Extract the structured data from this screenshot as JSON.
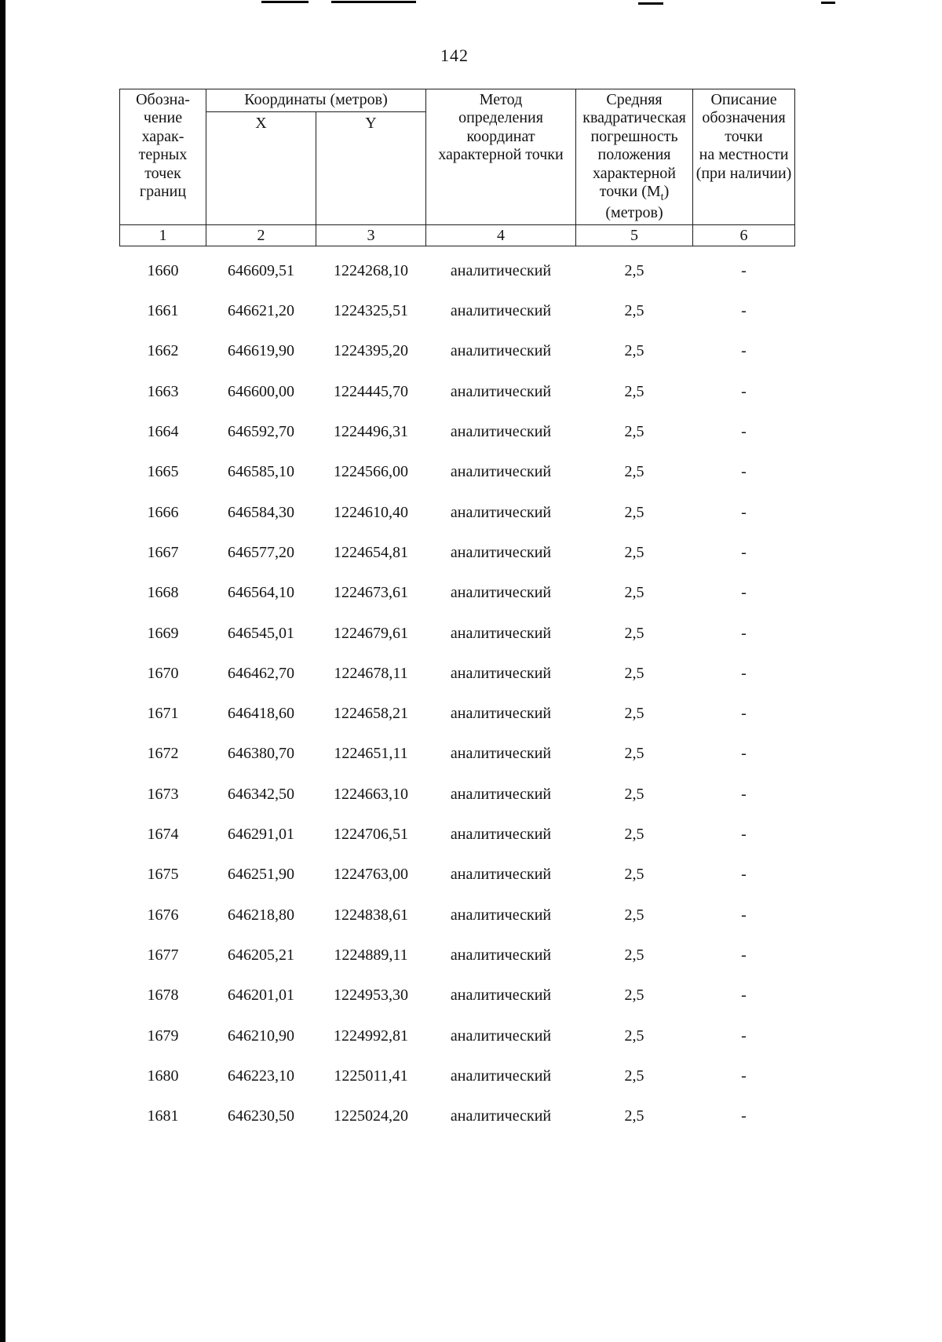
{
  "ink_color": "#141414",
  "page_number": "142",
  "table": {
    "header": {
      "designation": "Обозна-\nчение\nхарак-\nтерных\nточек\nграниц",
      "coordinates": "Координаты (метров)",
      "x_label": "X",
      "y_label": "Y",
      "method": "Метод\nопределения\nкоординат\nхарактерной точки",
      "error_lines": "Средняя\nквадратическая\nпогрешность\nположения\nхарактерной",
      "error_point_prefix": "точки (М",
      "error_sub": "t",
      "error_point_suffix": ")",
      "error_units": "(метров)",
      "description": "Описание\nобозначения\nточки\nна местности\n(при наличии)"
    },
    "column_numbers": [
      "1",
      "2",
      "3",
      "4",
      "5",
      "6"
    ],
    "rows": [
      {
        "point": "1660",
        "x": "646609,51",
        "y": "1224268,10",
        "method": "аналитический",
        "error": "2,5",
        "description": "-"
      },
      {
        "point": "1661",
        "x": "646621,20",
        "y": "1224325,51",
        "method": "аналитический",
        "error": "2,5",
        "description": "-"
      },
      {
        "point": "1662",
        "x": "646619,90",
        "y": "1224395,20",
        "method": "аналитический",
        "error": "2,5",
        "description": "-"
      },
      {
        "point": "1663",
        "x": "646600,00",
        "y": "1224445,70",
        "method": "аналитический",
        "error": "2,5",
        "description": "-"
      },
      {
        "point": "1664",
        "x": "646592,70",
        "y": "1224496,31",
        "method": "аналитический",
        "error": "2,5",
        "description": "-"
      },
      {
        "point": "1665",
        "x": "646585,10",
        "y": "1224566,00",
        "method": "аналитический",
        "error": "2,5",
        "description": "-"
      },
      {
        "point": "1666",
        "x": "646584,30",
        "y": "1224610,40",
        "method": "аналитический",
        "error": "2,5",
        "description": "-"
      },
      {
        "point": "1667",
        "x": "646577,20",
        "y": "1224654,81",
        "method": "аналитический",
        "error": "2,5",
        "description": "-"
      },
      {
        "point": "1668",
        "x": "646564,10",
        "y": "1224673,61",
        "method": "аналитический",
        "error": "2,5",
        "description": "-"
      },
      {
        "point": "1669",
        "x": "646545,01",
        "y": "1224679,61",
        "method": "аналитический",
        "error": "2,5",
        "description": "-"
      },
      {
        "point": "1670",
        "x": "646462,70",
        "y": "1224678,11",
        "method": "аналитический",
        "error": "2,5",
        "description": "-"
      },
      {
        "point": "1671",
        "x": "646418,60",
        "y": "1224658,21",
        "method": "аналитический",
        "error": "2,5",
        "description": "-"
      },
      {
        "point": "1672",
        "x": "646380,70",
        "y": "1224651,11",
        "method": "аналитический",
        "error": "2,5",
        "description": "-"
      },
      {
        "point": "1673",
        "x": "646342,50",
        "y": "1224663,10",
        "method": "аналитический",
        "error": "2,5",
        "description": "-"
      },
      {
        "point": "1674",
        "x": "646291,01",
        "y": "1224706,51",
        "method": "аналитический",
        "error": "2,5",
        "description": "-"
      },
      {
        "point": "1675",
        "x": "646251,90",
        "y": "1224763,00",
        "method": "аналитический",
        "error": "2,5",
        "description": "-"
      },
      {
        "point": "1676",
        "x": "646218,80",
        "y": "1224838,61",
        "method": "аналитический",
        "error": "2,5",
        "description": "-"
      },
      {
        "point": "1677",
        "x": "646205,21",
        "y": "1224889,11",
        "method": "аналитический",
        "error": "2,5",
        "description": "-"
      },
      {
        "point": "1678",
        "x": "646201,01",
        "y": "1224953,30",
        "method": "аналитический",
        "error": "2,5",
        "description": "-"
      },
      {
        "point": "1679",
        "x": "646210,90",
        "y": "1224992,81",
        "method": "аналитический",
        "error": "2,5",
        "description": "-"
      },
      {
        "point": "1680",
        "x": "646223,10",
        "y": "1225011,41",
        "method": "аналитический",
        "error": "2,5",
        "description": "-"
      },
      {
        "point": "1681",
        "x": "646230,50",
        "y": "1225024,20",
        "method": "аналитический",
        "error": "2,5",
        "description": "-"
      }
    ]
  }
}
